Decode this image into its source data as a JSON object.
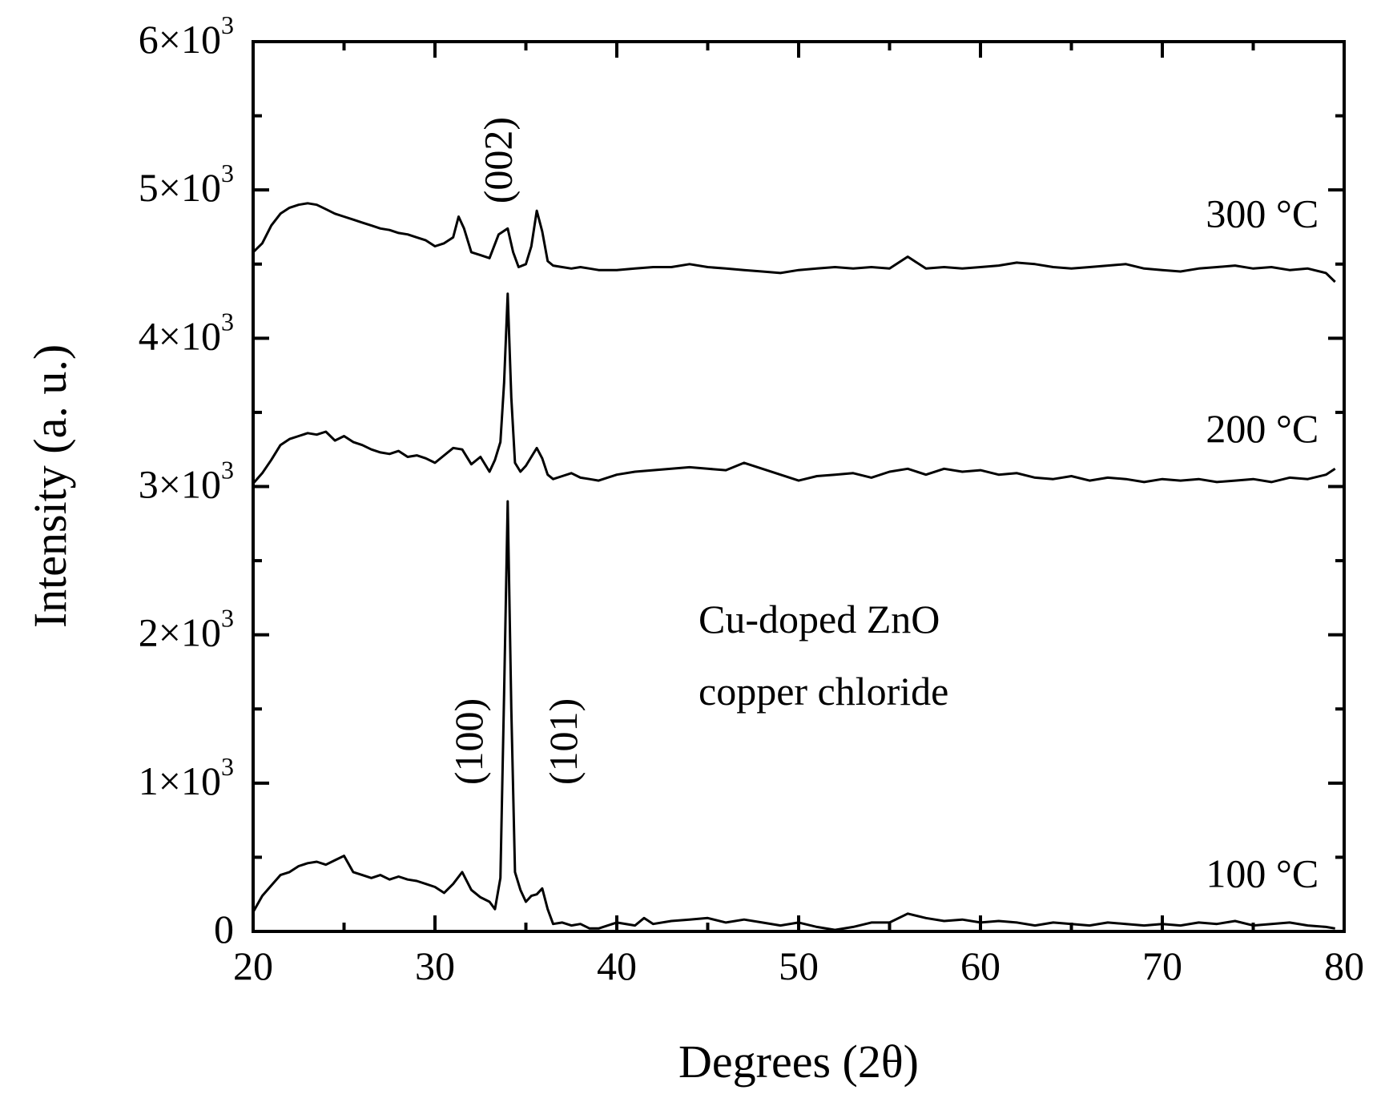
{
  "chart_data": {
    "type": "line",
    "title": "",
    "xlabel": "Degrees (2θ)",
    "ylabel": "Intensity (a. u.)",
    "xlim": [
      20,
      80
    ],
    "ylim": [
      0,
      6000
    ],
    "x_ticks": [
      {
        "value": 20,
        "label": "20"
      },
      {
        "value": 30,
        "label": "30"
      },
      {
        "value": 40,
        "label": "40"
      },
      {
        "value": 50,
        "label": "50"
      },
      {
        "value": 60,
        "label": "60"
      },
      {
        "value": 70,
        "label": "70"
      },
      {
        "value": 80,
        "label": "80"
      }
    ],
    "y_ticks": [
      {
        "value": 0,
        "base": "0",
        "exp": ""
      },
      {
        "value": 1000,
        "base": "1×10",
        "exp": "3"
      },
      {
        "value": 2000,
        "base": "2×10",
        "exp": "3"
      },
      {
        "value": 3000,
        "base": "3×10",
        "exp": "3"
      },
      {
        "value": 4000,
        "base": "4×10",
        "exp": "3"
      },
      {
        "value": 5000,
        "base": "5×10",
        "exp": "3"
      },
      {
        "value": 6000,
        "base": "6×10",
        "exp": "3"
      }
    ],
    "annotation": {
      "line1": "Cu-doped ZnO",
      "line2": "copper chloride"
    },
    "peak_labels": [
      {
        "text": "(100)",
        "x": 32.6,
        "y": 1280
      },
      {
        "text": "(101)",
        "x": 37.8,
        "y": 1280
      },
      {
        "text": "(002)",
        "x": 34.2,
        "y": 5200
      }
    ],
    "grid": false,
    "series": [
      {
        "name": "100 °C",
        "label_at": [
          75.5,
          300
        ],
        "x": [
          20,
          20.5,
          21,
          21.5,
          22,
          22.5,
          23,
          23.5,
          24,
          24.5,
          25,
          25.5,
          26,
          26.5,
          27,
          27.5,
          28,
          28.5,
          29,
          29.5,
          30,
          30.5,
          31,
          31.5,
          32,
          32.5,
          33,
          33.3,
          33.6,
          33.8,
          34,
          34.2,
          34.4,
          34.7,
          35,
          35.3,
          35.6,
          35.9,
          36.2,
          36.5,
          37,
          37.5,
          38,
          38.5,
          39,
          40,
          41,
          41.5,
          42,
          43,
          44,
          45,
          46,
          47,
          48,
          49,
          50,
          51,
          52,
          53,
          54,
          55,
          56,
          57,
          58,
          59,
          60,
          61,
          62,
          63,
          64,
          65,
          66,
          67,
          68,
          69,
          70,
          71,
          72,
          73,
          74,
          75,
          76,
          77,
          78,
          79,
          79.5
        ],
        "y": [
          130,
          240,
          310,
          380,
          400,
          440,
          460,
          470,
          450,
          480,
          510,
          400,
          380,
          360,
          380,
          350,
          370,
          350,
          340,
          320,
          300,
          260,
          320,
          400,
          280,
          230,
          200,
          150,
          360,
          1600,
          2900,
          1500,
          400,
          280,
          200,
          240,
          250,
          290,
          150,
          50,
          60,
          40,
          50,
          20,
          20,
          60,
          40,
          90,
          50,
          70,
          80,
          90,
          60,
          80,
          60,
          40,
          60,
          30,
          10,
          30,
          60,
          60,
          120,
          90,
          70,
          80,
          60,
          70,
          60,
          40,
          60,
          50,
          40,
          60,
          50,
          40,
          50,
          40,
          60,
          50,
          70,
          40,
          50,
          60,
          40,
          30,
          20
        ]
      },
      {
        "name": "200 °C",
        "label_at": [
          75.5,
          3300
        ],
        "x": [
          20,
          20.5,
          21,
          21.5,
          22,
          22.5,
          23,
          23.5,
          24,
          24.5,
          25,
          25.5,
          26,
          26.5,
          27,
          27.5,
          28,
          28.5,
          29,
          29.5,
          30,
          30.5,
          31,
          31.5,
          32,
          32.5,
          33,
          33.3,
          33.6,
          33.8,
          34,
          34.2,
          34.4,
          34.7,
          35,
          35.3,
          35.6,
          35.9,
          36.2,
          36.5,
          37,
          37.5,
          38,
          38.5,
          39,
          40,
          41,
          42,
          43,
          44,
          45,
          46,
          47,
          48,
          49,
          50,
          51,
          52,
          53,
          54,
          55,
          56,
          57,
          58,
          59,
          60,
          61,
          62,
          63,
          64,
          65,
          66,
          67,
          68,
          69,
          70,
          71,
          72,
          73,
          74,
          75,
          76,
          77,
          78,
          79,
          79.5
        ],
        "y": [
          3020,
          3090,
          3180,
          3280,
          3320,
          3340,
          3360,
          3350,
          3370,
          3310,
          3340,
          3300,
          3280,
          3250,
          3230,
          3220,
          3240,
          3200,
          3210,
          3190,
          3160,
          3210,
          3260,
          3250,
          3150,
          3200,
          3100,
          3180,
          3300,
          3700,
          4300,
          3600,
          3160,
          3100,
          3140,
          3200,
          3260,
          3190,
          3080,
          3050,
          3070,
          3090,
          3060,
          3050,
          3040,
          3080,
          3100,
          3110,
          3120,
          3130,
          3120,
          3110,
          3160,
          3120,
          3080,
          3040,
          3070,
          3080,
          3090,
          3060,
          3100,
          3120,
          3080,
          3120,
          3100,
          3110,
          3080,
          3090,
          3060,
          3050,
          3070,
          3040,
          3060,
          3050,
          3030,
          3050,
          3040,
          3050,
          3030,
          3040,
          3050,
          3030,
          3060,
          3050,
          3080,
          3120
        ]
      },
      {
        "name": "300 °C",
        "label_at": [
          75.5,
          4750
        ],
        "x": [
          20,
          20.5,
          21,
          21.5,
          22,
          22.5,
          23,
          23.5,
          24,
          24.5,
          25,
          25.5,
          26,
          26.5,
          27,
          27.5,
          28,
          28.5,
          29,
          29.5,
          30,
          30.5,
          31,
          31.3,
          31.6,
          32,
          32.5,
          33,
          33.5,
          34,
          34.3,
          34.6,
          35,
          35.3,
          35.6,
          35.9,
          36.2,
          36.5,
          37,
          37.5,
          38,
          38.5,
          39,
          40,
          41,
          42,
          43,
          44,
          45,
          46,
          47,
          48,
          49,
          50,
          51,
          52,
          53,
          54,
          55,
          56,
          57,
          58,
          59,
          60,
          61,
          62,
          63,
          64,
          65,
          66,
          67,
          68,
          69,
          70,
          71,
          72,
          73,
          74,
          75,
          76,
          77,
          78,
          79,
          79.5
        ],
        "y": [
          4580,
          4640,
          4760,
          4840,
          4880,
          4900,
          4910,
          4900,
          4870,
          4840,
          4820,
          4800,
          4780,
          4760,
          4740,
          4730,
          4710,
          4700,
          4680,
          4660,
          4620,
          4640,
          4680,
          4820,
          4740,
          4580,
          4560,
          4540,
          4700,
          4740,
          4580,
          4480,
          4500,
          4620,
          4860,
          4720,
          4520,
          4490,
          4480,
          4470,
          4480,
          4470,
          4460,
          4460,
          4470,
          4480,
          4480,
          4500,
          4480,
          4470,
          4460,
          4450,
          4440,
          4460,
          4470,
          4480,
          4470,
          4480,
          4470,
          4550,
          4470,
          4480,
          4470,
          4480,
          4490,
          4510,
          4500,
          4480,
          4470,
          4480,
          4490,
          4500,
          4470,
          4460,
          4450,
          4470,
          4480,
          4490,
          4470,
          4480,
          4460,
          4470,
          4440,
          4380
        ]
      }
    ]
  }
}
